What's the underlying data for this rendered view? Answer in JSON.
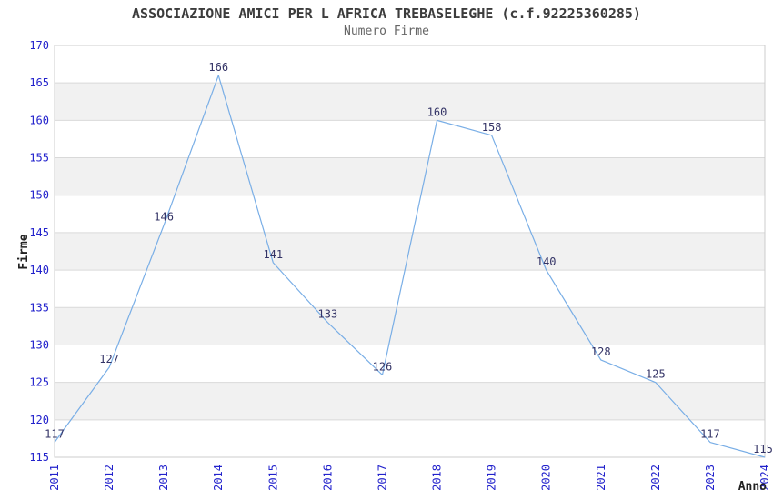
{
  "chart_data": {
    "type": "line",
    "title": "ASSOCIAZIONE AMICI PER L AFRICA TREBASELEGHE (c.f.92225360285)",
    "subtitle": "Numero Firme",
    "xlabel": "Anno",
    "ylabel": "Firme",
    "categories": [
      "2011",
      "2012",
      "2013",
      "2014",
      "2015",
      "2016",
      "2017",
      "2018",
      "2019",
      "2020",
      "2021",
      "2022",
      "2023",
      "2024"
    ],
    "values": [
      117,
      127,
      146,
      166,
      141,
      133,
      126,
      160,
      158,
      140,
      128,
      125,
      117,
      115
    ],
    "ylim": [
      115,
      170
    ],
    "ytick_step": 5,
    "ytick_labels": [
      "115",
      "120",
      "125",
      "130",
      "135",
      "140",
      "145",
      "150",
      "155",
      "160",
      "165",
      "170"
    ],
    "grid": true,
    "banded_background": true,
    "legend": "none",
    "colors": {
      "line": "#79aee6",
      "tick_label": "#2222cc",
      "data_label": "#333366",
      "band": "#f1f1f1",
      "gridline": "#d9d9d9",
      "plot_border": "#cccccc",
      "title": "#3c3c3c",
      "subtitle": "#666666",
      "axis_title": "#222222"
    }
  }
}
